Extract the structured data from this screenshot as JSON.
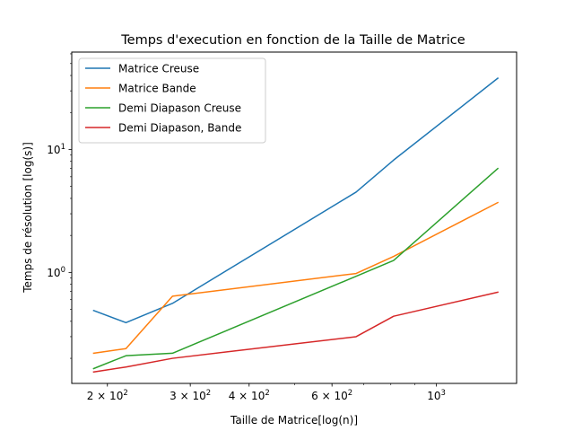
{
  "chart_data": {
    "type": "line",
    "title": "Temps d'execution en fonction de la Taille de Matrice",
    "xlabel": "Taille de Matrice[log(n)]",
    "ylabel": "Temps de résolution [log(s)]",
    "xscale": "log",
    "yscale": "log",
    "xlim": [
      168,
      1480
    ],
    "ylim": [
      0.125,
      62
    ],
    "grid": false,
    "legend_position": "top-left",
    "x": [
      187,
      219,
      275,
      675,
      811,
      1350
    ],
    "x_ticks": [
      {
        "value": 200,
        "base": "2 × 10",
        "exp": "2"
      },
      {
        "value": 300,
        "base": "3 × 10",
        "exp": "2"
      },
      {
        "value": 400,
        "base": "4 × 10",
        "exp": "2"
      },
      {
        "value": 600,
        "base": "6 × 10",
        "exp": "2"
      },
      {
        "value": 1000,
        "base": "10",
        "exp": "3"
      }
    ],
    "y_ticks": [
      {
        "value": 1,
        "base": "10",
        "exp": "0"
      },
      {
        "value": 10,
        "base": "10",
        "exp": "1"
      }
    ],
    "series": [
      {
        "name": "Matrice Creuse",
        "color": "#1f77b4",
        "values": [
          0.49,
          0.39,
          0.56,
          4.5,
          8.2,
          38
        ]
      },
      {
        "name": "Matrice Bande",
        "color": "#ff7f0e",
        "values": [
          0.22,
          0.24,
          0.64,
          0.98,
          1.35,
          3.7
        ]
      },
      {
        "name": "Demi Diapason Creuse",
        "color": "#2ca02c",
        "values": [
          0.165,
          0.21,
          0.22,
          0.93,
          1.25,
          7.0
        ]
      },
      {
        "name": "Demi Diapason, Bande",
        "color": "#d62728",
        "values": [
          0.155,
          0.17,
          0.2,
          0.3,
          0.44,
          0.69
        ]
      }
    ]
  }
}
